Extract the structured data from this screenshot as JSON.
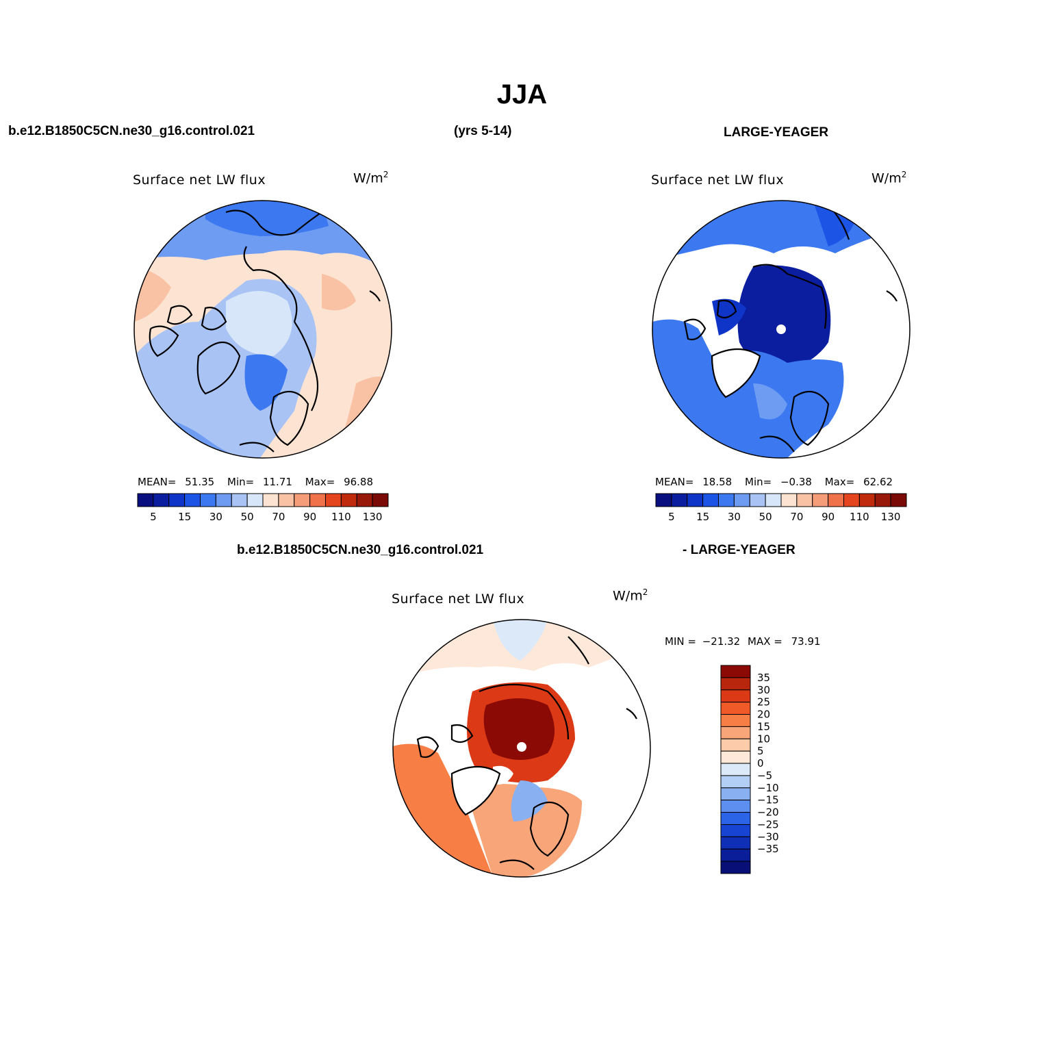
{
  "title": "JJA",
  "header": {
    "case1": "b.e12.B1850C5CN.ne30_g16.control.021",
    "years": "(yrs 5-14)",
    "case2": "LARGE-YEAGER"
  },
  "panels": [
    {
      "id": "control",
      "title": "Surface net LW flux",
      "units": "W/m",
      "units_sup": "2",
      "mean_label": "MEAN=",
      "mean": "51.35",
      "min_label": "Min=",
      "min": "11.71",
      "max_label": "Max=",
      "max": "96.88"
    },
    {
      "id": "obs",
      "title": "Surface net LW flux",
      "units": "W/m",
      "units_sup": "2",
      "mean_label": "MEAN=",
      "mean": "18.58",
      "min_label": "Min=",
      "min": "−0.38",
      "max_label": "Max=",
      "max": "62.62"
    }
  ],
  "abs_colorbar": {
    "colors": [
      "#0a0f80",
      "#0c1ea0",
      "#0f35c8",
      "#1c55e6",
      "#3c78f0",
      "#6e9cf2",
      "#a9c3f5",
      "#d7e7f9",
      "#fde3d2",
      "#f9c2a5",
      "#f59c78",
      "#f0724a",
      "#e5451e",
      "#c02b0e",
      "#98190a",
      "#7a0a05"
    ],
    "labels": [
      "5",
      "15",
      "30",
      "50",
      "70",
      "90",
      "110",
      "130"
    ]
  },
  "diff": {
    "case1": "b.e12.B1850C5CN.ne30_g16.control.021",
    "case2": "- LARGE-YEAGER",
    "title": "Surface net LW flux",
    "units": "W/m",
    "units_sup": "2",
    "min_label": "MIN =",
    "min": "−21.32",
    "max_label": "MAX =",
    "max": "73.91"
  },
  "diff_colorbar": {
    "colors_top_to_bottom": [
      "#8b0a05",
      "#b8260d",
      "#dc3a16",
      "#f05a28",
      "#f77f45",
      "#f9a57a",
      "#fbcbaa",
      "#fde8da",
      "#dce9f8",
      "#b3cff5",
      "#89b1f2",
      "#5d8ff0",
      "#2c64e8",
      "#1744d2",
      "#0f2fb6",
      "#0a1e9a",
      "#081078"
    ],
    "labels": [
      "35",
      "30",
      "25",
      "20",
      "15",
      "10",
      "5",
      "0",
      "−5",
      "−10",
      "−15",
      "−20",
      "−25",
      "−30",
      "−35"
    ]
  }
}
